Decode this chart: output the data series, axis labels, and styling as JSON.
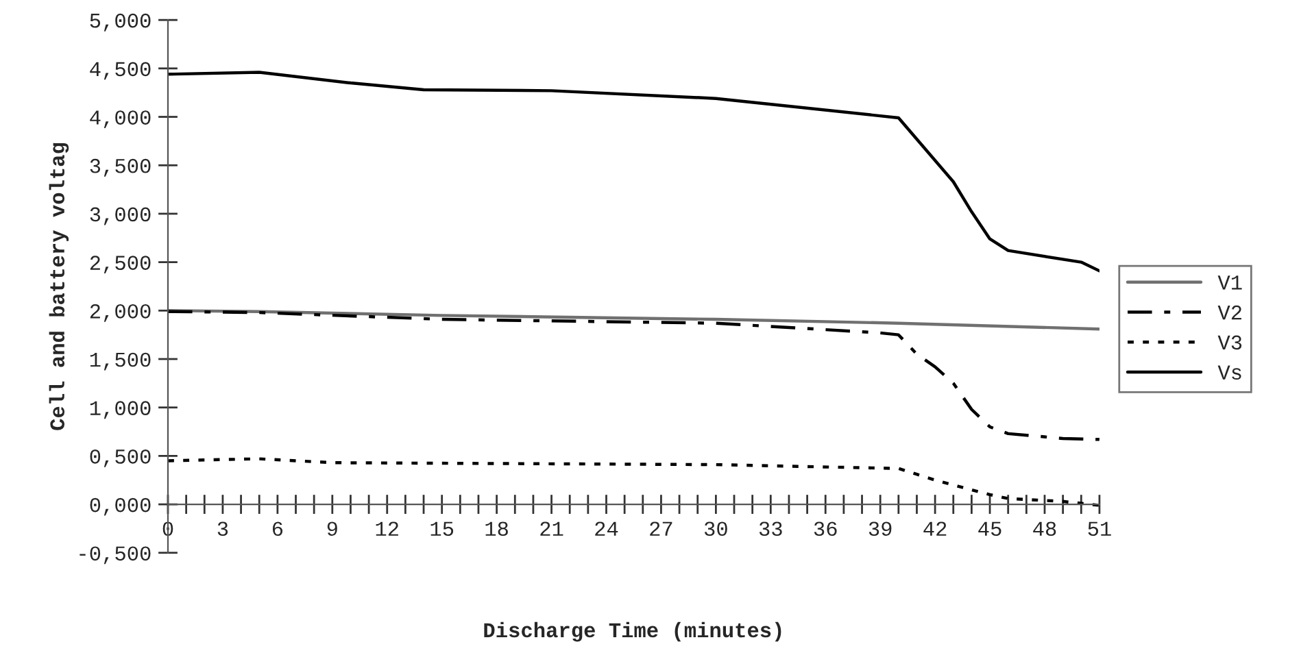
{
  "chart_data": {
    "type": "line",
    "xlabel": "Discharge Time (minutes)",
    "ylabel": "Cell and battery voltag",
    "xlim": [
      0,
      51
    ],
    "xticks": [
      0,
      3,
      6,
      9,
      12,
      15,
      18,
      21,
      24,
      27,
      30,
      33,
      36,
      39,
      42,
      45,
      48,
      51
    ],
    "ylim": [
      -0.5,
      5
    ],
    "yticks": [
      {
        "value": -0.5,
        "label": "-0,500"
      },
      {
        "value": 0,
        "label": "0,000"
      },
      {
        "value": 0.5,
        "label": "0,500"
      },
      {
        "value": 1,
        "label": "1,000"
      },
      {
        "value": 1.5,
        "label": "1,500"
      },
      {
        "value": 2,
        "label": "2,000"
      },
      {
        "value": 2.5,
        "label": "2,500"
      },
      {
        "value": 3,
        "label": "3,000"
      },
      {
        "value": 3.5,
        "label": "3,500"
      },
      {
        "value": 4,
        "label": "4,000"
      },
      {
        "value": 4.5,
        "label": "4,500"
      },
      {
        "value": 5,
        "label": "5,000"
      }
    ],
    "grid": false,
    "legend": "right",
    "marker": "none",
    "series": [
      {
        "name": "V1",
        "color": "#707070",
        "line_style": "solid",
        "x": [
          0,
          5,
          15,
          30,
          40,
          51
        ],
        "values": [
          2.0,
          1.99,
          1.95,
          1.91,
          1.87,
          1.81
        ]
      },
      {
        "name": "V2",
        "color": "#000000",
        "line_style": "dashdot",
        "x": [
          0,
          5,
          15,
          30,
          39,
          40,
          41,
          42,
          43,
          44,
          45,
          46,
          49,
          51
        ],
        "values": [
          1.99,
          1.98,
          1.91,
          1.87,
          1.77,
          1.75,
          1.55,
          1.42,
          1.25,
          0.98,
          0.8,
          0.73,
          0.68,
          0.67
        ]
      },
      {
        "name": "V3",
        "color": "#000000",
        "line_style": "dotted",
        "x": [
          0,
          5,
          9,
          30,
          40,
          41,
          42,
          43,
          44,
          45,
          46,
          49,
          51
        ],
        "values": [
          0.45,
          0.47,
          0.43,
          0.41,
          0.37,
          0.31,
          0.25,
          0.2,
          0.15,
          0.1,
          0.06,
          0.03,
          -0.01
        ]
      },
      {
        "name": "Vs",
        "color": "#000000",
        "line_style": "solid",
        "x": [
          0,
          5,
          10,
          14,
          21,
          30,
          40,
          43,
          44,
          45,
          46,
          50,
          51
        ],
        "values": [
          4.44,
          4.46,
          4.35,
          4.28,
          4.27,
          4.19,
          3.99,
          3.33,
          3.02,
          2.74,
          2.62,
          2.5,
          2.41
        ]
      }
    ]
  }
}
